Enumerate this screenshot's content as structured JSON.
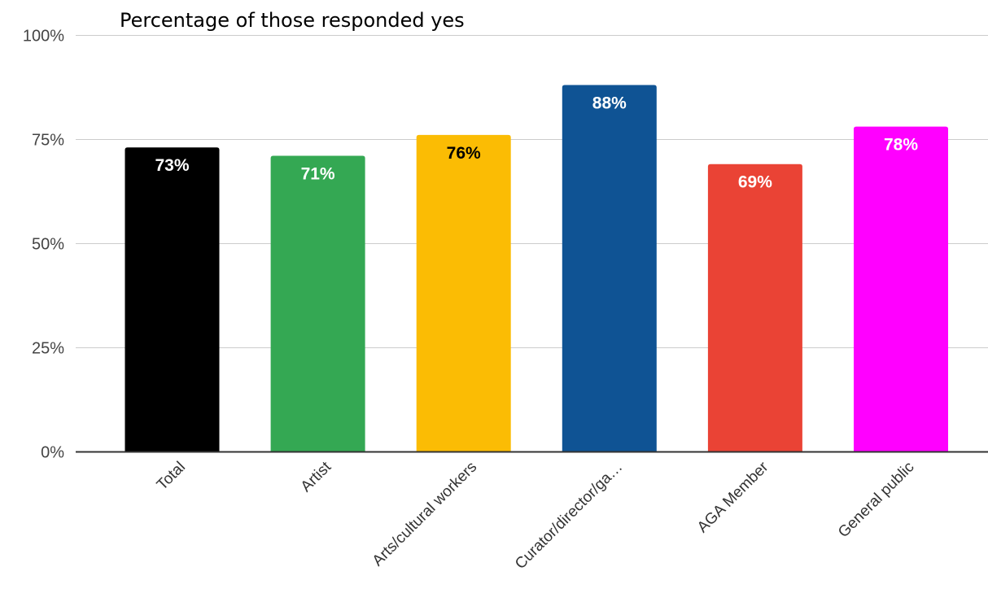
{
  "chart_data": {
    "type": "bar",
    "title": "Percentage of those responded yes",
    "xlabel": "",
    "ylabel": "",
    "categories": [
      "Total",
      "Artist",
      "Arts/cultural workers",
      "Curator/director/ga…",
      "AGA Member",
      "General public"
    ],
    "values": [
      73,
      71,
      76,
      88,
      69,
      78
    ],
    "data_labels": [
      "73%",
      "71%",
      "76%",
      "88%",
      "69%",
      "78%"
    ],
    "bar_colors": [
      "#000000",
      "#34a853",
      "#fbbc04",
      "#0f5394",
      "#ea4335",
      "#ff00ff"
    ],
    "label_colors": [
      "#ffffff",
      "#ffffff",
      "#000000",
      "#ffffff",
      "#ffffff",
      "#ffffff"
    ],
    "ylim": [
      0,
      100
    ],
    "yticks": [
      0,
      25,
      50,
      75,
      100
    ],
    "ytick_labels": [
      "0%",
      "25%",
      "50%",
      "75%",
      "100%"
    ],
    "grid": true,
    "legend": "none"
  }
}
